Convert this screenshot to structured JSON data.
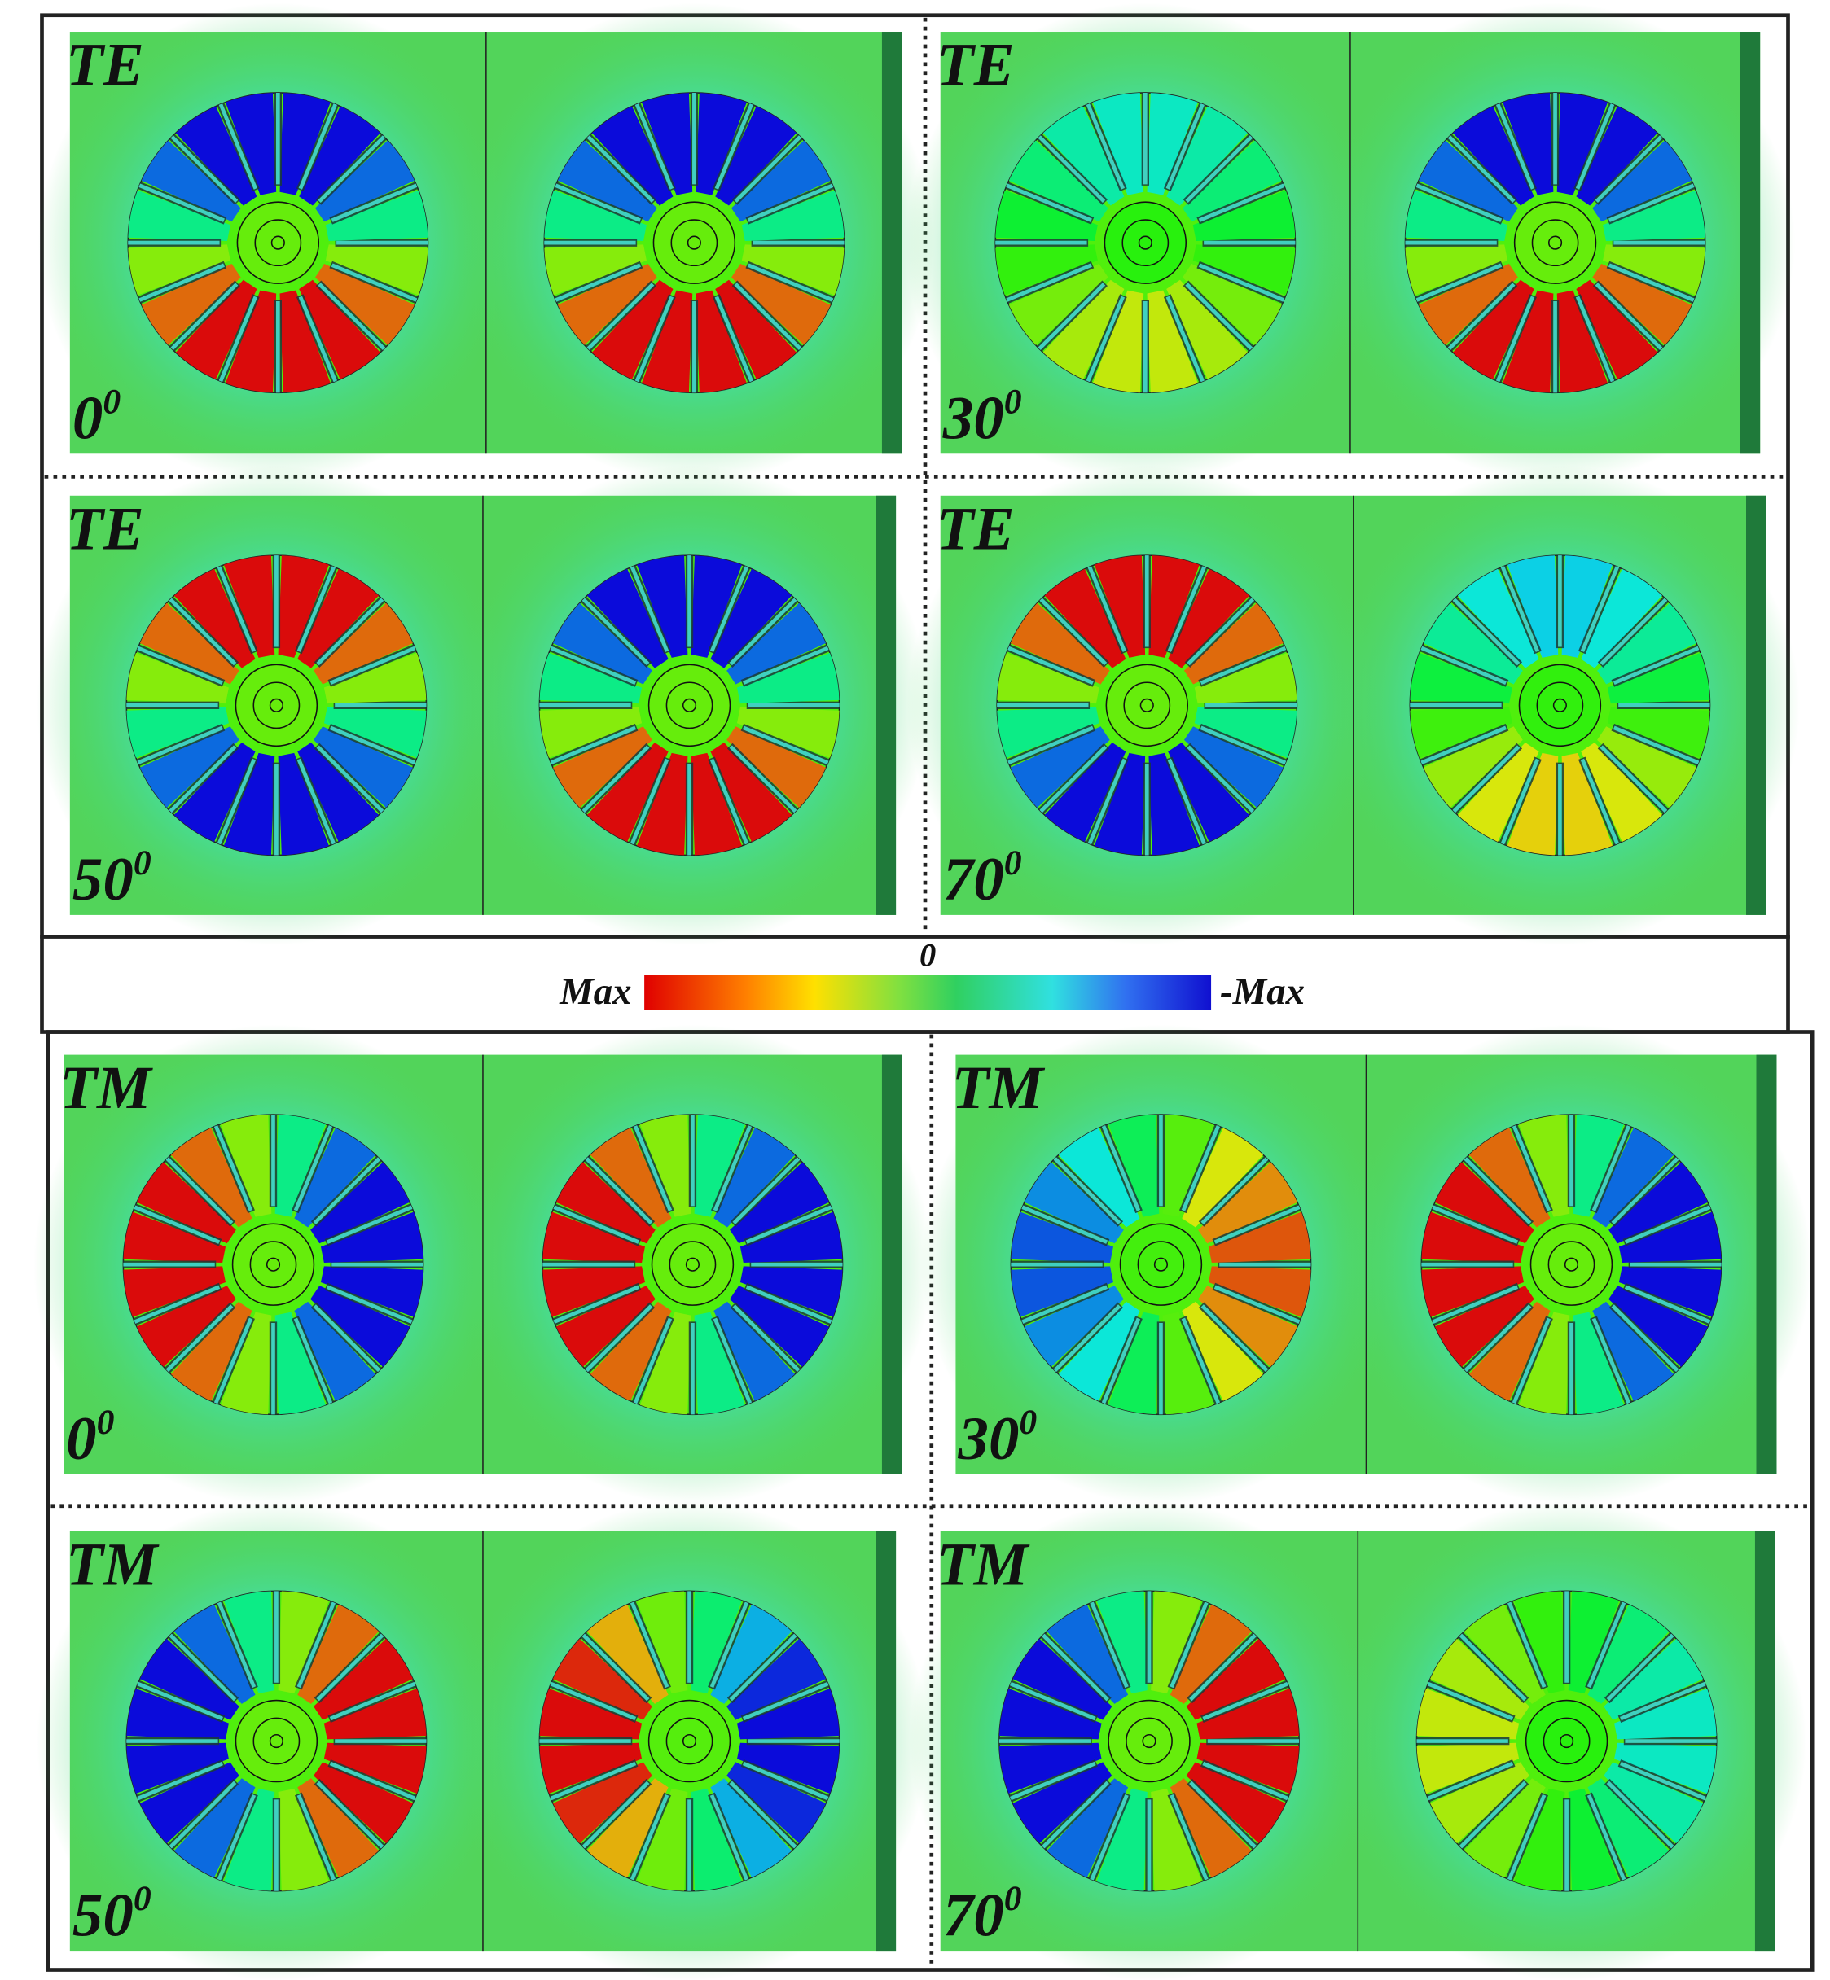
{
  "panels": [
    {
      "mode": "TE",
      "angle": "0",
      "angle_sup": "0"
    },
    {
      "mode": "TE",
      "angle": "30",
      "angle_sup": "0"
    },
    {
      "mode": "TE",
      "angle": "50",
      "angle_sup": "0"
    },
    {
      "mode": "TE",
      "angle": "70",
      "angle_sup": "0"
    },
    {
      "mode": "TM",
      "angle": "0",
      "angle_sup": "0"
    },
    {
      "mode": "TM",
      "angle": "30",
      "angle_sup": "0"
    },
    {
      "mode": "TM",
      "angle": "50",
      "angle_sup": "0"
    },
    {
      "mode": "TM",
      "angle": "70",
      "angle_sup": "0"
    }
  ],
  "colorbar": {
    "zero": "0",
    "max": "Max",
    "min": "-Max"
  }
}
